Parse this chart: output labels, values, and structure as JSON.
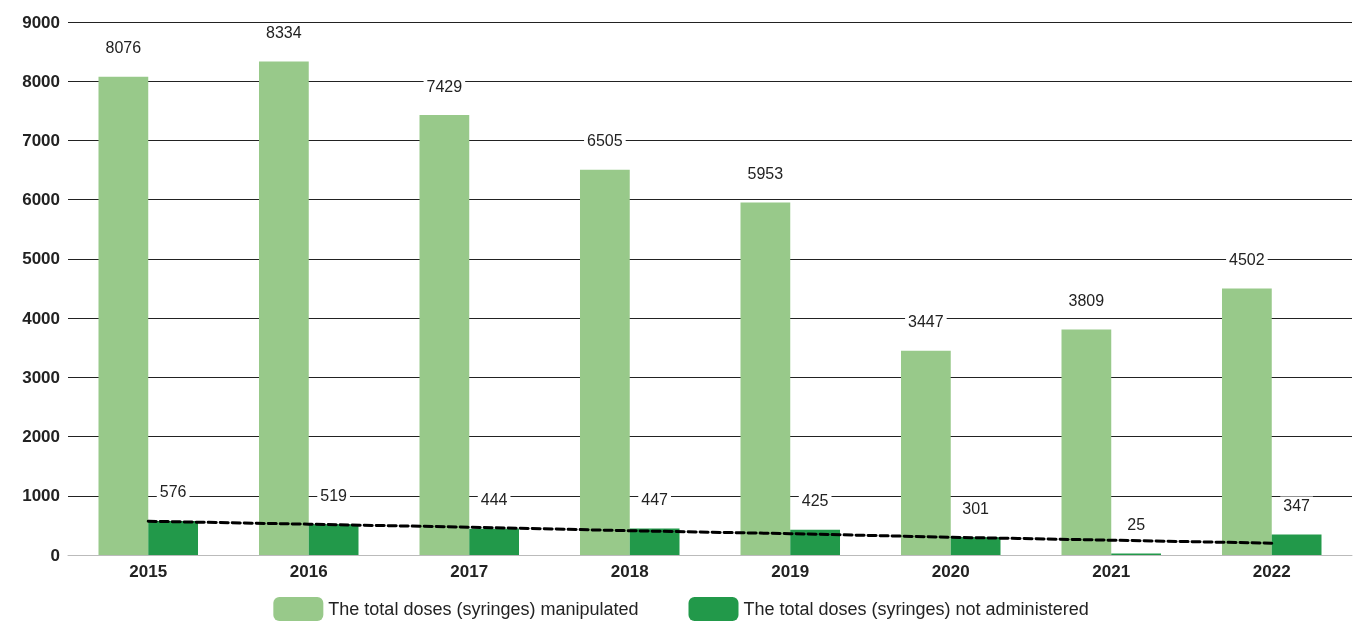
{
  "chart_data": {
    "type": "bar",
    "categories": [
      "2015",
      "2016",
      "2017",
      "2018",
      "2019",
      "2020",
      "2021",
      "2022"
    ],
    "series": [
      {
        "name": "The total doses (syringes) manipulated",
        "color": "#98c98a",
        "values": [
          8076,
          8334,
          7429,
          6505,
          5953,
          3447,
          3809,
          4502
        ],
        "value_labels": [
          "8076",
          "8334",
          "7429",
          "6505",
          "5953",
          "3447",
          "3809",
          "4502"
        ]
      },
      {
        "name": "The total doses (syringes) not administered",
        "color": "#22994a",
        "values": [
          576,
          519,
          444,
          447,
          425,
          301,
          25,
          347
        ],
        "value_labels": [
          "576",
          "519",
          "444",
          "447",
          "425",
          "301",
          "25",
          "347"
        ]
      },
      {
        "type": "line",
        "values": [
          570,
          520,
          470,
          410,
          360,
          300,
          250,
          200
        ],
        "color": "#000000",
        "line_style": "dashed",
        "marker": "none"
      }
    ],
    "ylim": [
      0,
      9000
    ],
    "yticks": [
      0,
      1000,
      2000,
      3000,
      4000,
      5000,
      6000,
      7000,
      8000,
      9000
    ],
    "grid": "y",
    "legend": "bottom"
  }
}
